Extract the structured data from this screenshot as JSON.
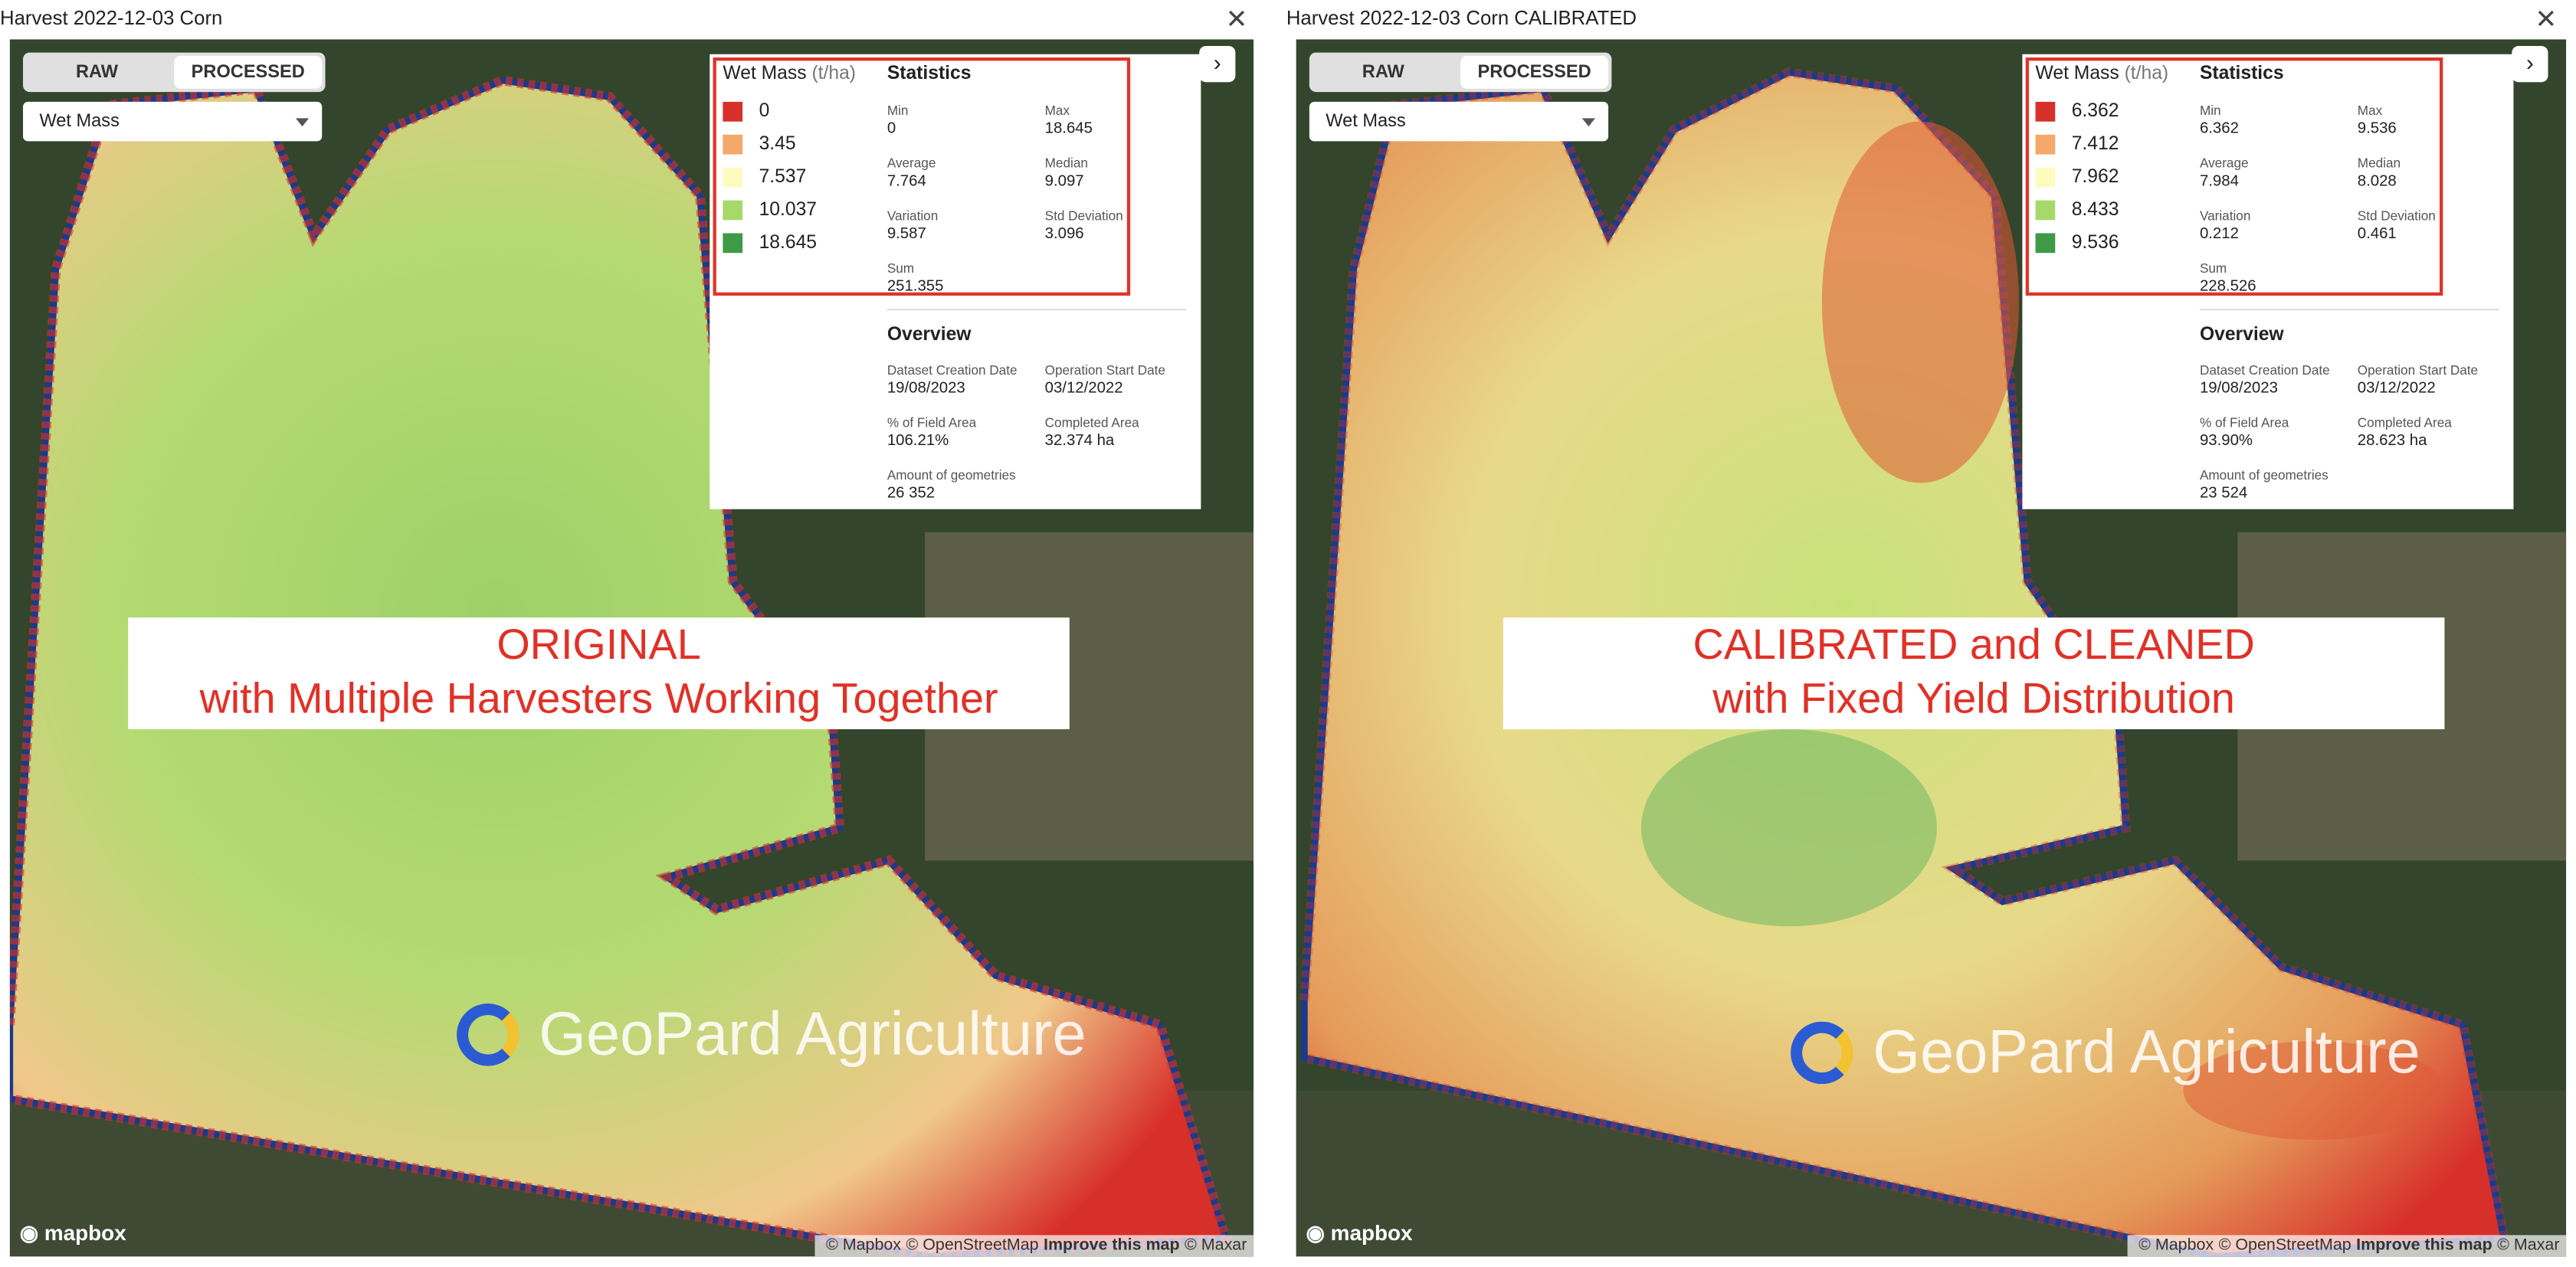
{
  "panels": [
    {
      "title": "Harvest 2022-12-03 Corn",
      "toggle": [
        "RAW",
        "PROCESSED"
      ],
      "dropdown": "Wet Mass",
      "legend": {
        "title": "Wet Mass",
        "unit": "(t/ha)",
        "items": [
          {
            "color": "#d7302a",
            "label": "0"
          },
          {
            "color": "#f4a86a",
            "label": "3.45"
          },
          {
            "color": "#fdfcbe",
            "label": "7.537"
          },
          {
            "color": "#a6d96a",
            "label": "10.037"
          },
          {
            "color": "#3e9a47",
            "label": "18.645"
          }
        ]
      },
      "statistics": {
        "heading": "Statistics",
        "items": [
          {
            "label": "Min",
            "value": "0"
          },
          {
            "label": "Max",
            "value": "18.645"
          },
          {
            "label": "Average",
            "value": "7.764"
          },
          {
            "label": "Median",
            "value": "9.097"
          },
          {
            "label": "Variation",
            "value": "9.587"
          },
          {
            "label": "Std Deviation",
            "value": "3.096"
          },
          {
            "label": "Sum",
            "value": "251.355"
          }
        ]
      },
      "overview": {
        "heading": "Overview",
        "items": [
          {
            "label": "Dataset Creation Date",
            "value": "19/08/2023"
          },
          {
            "label": "Operation Start Date",
            "value": "03/12/2022"
          },
          {
            "label": "% of Field Area",
            "value": "106.21%"
          },
          {
            "label": "Completed Area",
            "value": "32.374 ha"
          },
          {
            "label": "Amount of geometries",
            "value": "26 352"
          }
        ]
      },
      "overlay": [
        "ORIGINAL",
        "with Multiple Harvesters Working Together"
      ],
      "watermark": "GeoPard Agriculture",
      "logo": "mapbox",
      "attribution": [
        "© Mapbox",
        "© OpenStreetMap",
        "Improve this map",
        "© Maxar"
      ]
    },
    {
      "title": "Harvest 2022-12-03 Corn CALIBRATED",
      "toggle": [
        "RAW",
        "PROCESSED"
      ],
      "dropdown": "Wet Mass",
      "legend": {
        "title": "Wet Mass",
        "unit": "(t/ha)",
        "items": [
          {
            "color": "#d7302a",
            "label": "6.362"
          },
          {
            "color": "#f4a86a",
            "label": "7.412"
          },
          {
            "color": "#fdfcbe",
            "label": "7.962"
          },
          {
            "color": "#a6d96a",
            "label": "8.433"
          },
          {
            "color": "#3e9a47",
            "label": "9.536"
          }
        ]
      },
      "statistics": {
        "heading": "Statistics",
        "items": [
          {
            "label": "Min",
            "value": "6.362"
          },
          {
            "label": "Max",
            "value": "9.536"
          },
          {
            "label": "Average",
            "value": "7.984"
          },
          {
            "label": "Median",
            "value": "8.028"
          },
          {
            "label": "Variation",
            "value": "0.212"
          },
          {
            "label": "Std Deviation",
            "value": "0.461"
          },
          {
            "label": "Sum",
            "value": "228.526"
          }
        ]
      },
      "overview": {
        "heading": "Overview",
        "items": [
          {
            "label": "Dataset Creation Date",
            "value": "19/08/2023"
          },
          {
            "label": "Operation Start Date",
            "value": "03/12/2022"
          },
          {
            "label": "% of Field Area",
            "value": "93.90%"
          },
          {
            "label": "Completed Area",
            "value": "28.623 ha"
          },
          {
            "label": "Amount of geometries",
            "value": "23 524"
          }
        ]
      },
      "overlay": [
        "CALIBRATED and CLEANED",
        "with Fixed Yield Distribution"
      ],
      "watermark": "GeoPard Agriculture",
      "logo": "mapbox",
      "attribution": [
        "© Mapbox",
        "© OpenStreetMap",
        "Improve this map",
        "© Maxar"
      ]
    }
  ]
}
